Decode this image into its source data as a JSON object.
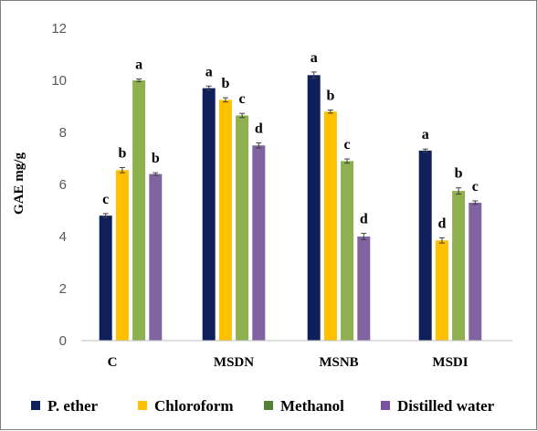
{
  "chart_data": {
    "type": "bar",
    "title": "",
    "xlabel": "",
    "ylabel": "GAE mg/g",
    "ylim": [
      0,
      12
    ],
    "yticks": [
      0,
      2,
      4,
      6,
      8,
      10,
      12
    ],
    "grid": false,
    "legend_position": "bottom",
    "categories": [
      "C",
      "MSDN",
      "MSNB",
      "MSDI"
    ],
    "series": [
      {
        "name": "P. ether",
        "color": "#0f1f5c",
        "values": [
          4.8,
          9.7,
          10.2,
          7.3
        ],
        "errors": [
          0.08,
          0.08,
          0.12,
          0.06
        ],
        "sig": [
          "c",
          "a",
          "a",
          "a"
        ]
      },
      {
        "name": "Chloroform",
        "color": "#ffc000",
        "values": [
          6.55,
          9.25,
          8.8,
          3.85
        ],
        "errors": [
          0.1,
          0.08,
          0.06,
          0.1
        ],
        "sig": [
          "b",
          "b",
          "b",
          "d"
        ]
      },
      {
        "name": "Methanol",
        "color": "#8eb04f",
        "values": [
          10.0,
          8.65,
          6.9,
          5.75
        ],
        "errors": [
          0.05,
          0.08,
          0.08,
          0.12
        ],
        "sig": [
          "a",
          "c",
          "c",
          "b"
        ]
      },
      {
        "name": "Distilled water",
        "color": "#8064a2",
        "values": [
          6.4,
          7.5,
          4.0,
          5.3
        ],
        "errors": [
          0.05,
          0.1,
          0.12,
          0.07
        ],
        "sig": [
          "b",
          "d",
          "d",
          "c"
        ]
      }
    ],
    "legend_colors": [
      "#0f1f5c",
      "#ffc000",
      "#548235",
      "#7b51a3"
    ]
  }
}
